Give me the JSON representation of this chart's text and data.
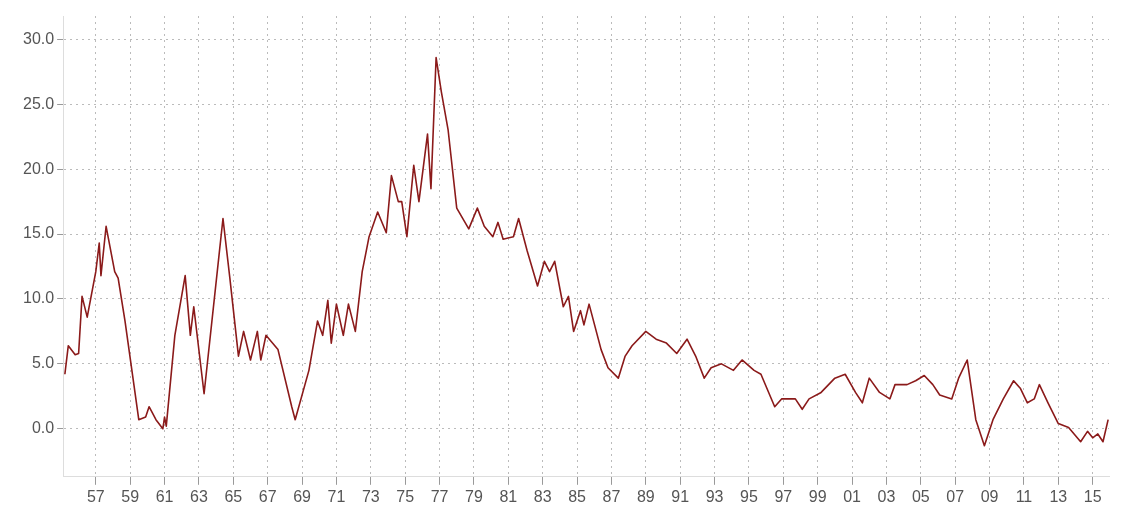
{
  "chart_data": {
    "type": "line",
    "xlim": [
      1955.1,
      2015.95
    ],
    "ylim": [
      -3.7,
      31.8
    ],
    "xticks": [
      {
        "value": 1957,
        "label": "57"
      },
      {
        "value": 1959,
        "label": "59"
      },
      {
        "value": 1961,
        "label": "61"
      },
      {
        "value": 1963,
        "label": "63"
      },
      {
        "value": 1965,
        "label": "65"
      },
      {
        "value": 1967,
        "label": "67"
      },
      {
        "value": 1969,
        "label": "69"
      },
      {
        "value": 1971,
        "label": "71"
      },
      {
        "value": 1973,
        "label": "73"
      },
      {
        "value": 1975,
        "label": "75"
      },
      {
        "value": 1977,
        "label": "77"
      },
      {
        "value": 1979,
        "label": "79"
      },
      {
        "value": 1981,
        "label": "81"
      },
      {
        "value": 1983,
        "label": "83"
      },
      {
        "value": 1985,
        "label": "85"
      },
      {
        "value": 1987,
        "label": "87"
      },
      {
        "value": 1989,
        "label": "89"
      },
      {
        "value": 1991,
        "label": "91"
      },
      {
        "value": 1993,
        "label": "93"
      },
      {
        "value": 1995,
        "label": "95"
      },
      {
        "value": 1997,
        "label": "97"
      },
      {
        "value": 1999,
        "label": "99"
      },
      {
        "value": 2001,
        "label": "01"
      },
      {
        "value": 2003,
        "label": "03"
      },
      {
        "value": 2005,
        "label": "05"
      },
      {
        "value": 2007,
        "label": "07"
      },
      {
        "value": 2009,
        "label": "09"
      },
      {
        "value": 2011,
        "label": "11"
      },
      {
        "value": 2013,
        "label": "13"
      },
      {
        "value": 2015,
        "label": "15"
      }
    ],
    "yticks": [
      {
        "value": 0,
        "label": "0.0"
      },
      {
        "value": 5,
        "label": "5.0"
      },
      {
        "value": 10,
        "label": "10.0"
      },
      {
        "value": 15,
        "label": "15.0"
      },
      {
        "value": 20,
        "label": "20.0"
      },
      {
        "value": 25,
        "label": "25.0"
      },
      {
        "value": 30,
        "label": "30.0"
      }
    ],
    "grid": true,
    "legend": false,
    "marker": "none",
    "line_style": "solid",
    "series": [
      {
        "color": "#8b1a1a",
        "x": [
          1955.2,
          1955.4,
          1955.8,
          1956.0,
          1956.2,
          1956.5,
          1957.0,
          1957.2,
          1957.3,
          1957.6,
          1958.1,
          1958.3,
          1958.7,
          1959.5,
          1959.9,
          1960.1,
          1960.5,
          1960.9,
          1961.0,
          1961.1,
          1961.6,
          1962.2,
          1962.5,
          1962.7,
          1963.3,
          1964.4,
          1964.8,
          1965.3,
          1965.6,
          1966.0,
          1966.4,
          1966.6,
          1966.9,
          1967.6,
          1968.4,
          1968.6,
          1969.4,
          1969.9,
          1970.2,
          1970.5,
          1970.7,
          1971.0,
          1971.4,
          1971.7,
          1972.1,
          1972.5,
          1972.9,
          1973.4,
          1973.9,
          1974.2,
          1974.6,
          1974.8,
          1975.1,
          1975.5,
          1975.8,
          1976.3,
          1976.5,
          1976.8,
          1977.1,
          1977.5,
          1978.0,
          1978.7,
          1979.2,
          1979.6,
          1980.1,
          1980.4,
          1980.7,
          1981.3,
          1981.6,
          1982.1,
          1982.7,
          1983.1,
          1983.4,
          1983.7,
          1984.2,
          1984.5,
          1984.8,
          1985.2,
          1985.4,
          1985.7,
          1986.4,
          1986.8,
          1987.4,
          1987.8,
          1988.2,
          1989.0,
          1989.6,
          1990.2,
          1990.8,
          1991.4,
          1991.9,
          1992.4,
          1992.8,
          1993.4,
          1994.1,
          1994.6,
          1995.3,
          1995.7,
          1996.5,
          1996.9,
          1997.7,
          1998.1,
          1998.5,
          1999.2,
          2000.0,
          2000.6,
          2001.2,
          2001.6,
          2002.0,
          2002.6,
          2003.2,
          2003.5,
          2004.2,
          2004.7,
          2005.2,
          2005.7,
          2006.1,
          2006.8,
          2007.2,
          2007.7,
          2008.2,
          2008.7,
          2009.2,
          2009.8,
          2010.4,
          2010.8,
          2011.2,
          2011.6,
          2011.9,
          2012.4,
          2013.0,
          2013.6,
          2014.3,
          2014.7,
          2015.0,
          2015.3,
          2015.6,
          2015.9
        ],
        "values": [
          4.2,
          6.4,
          5.7,
          5.8,
          10.2,
          8.6,
          12.1,
          14.3,
          11.8,
          15.6,
          12.1,
          11.6,
          8.3,
          0.7,
          0.9,
          1.7,
          0.7,
          0.0,
          0.9,
          0.2,
          7.2,
          11.8,
          7.2,
          9.4,
          2.7,
          16.2,
          11.6,
          5.6,
          7.5,
          5.3,
          7.5,
          5.3,
          7.2,
          6.1,
          1.7,
          0.7,
          4.5,
          8.3,
          7.2,
          9.9,
          6.6,
          9.6,
          7.2,
          9.6,
          7.5,
          12.1,
          14.8,
          16.7,
          15.1,
          19.5,
          17.5,
          17.5,
          14.8,
          20.3,
          17.5,
          22.7,
          18.5,
          28.6,
          26.0,
          23.0,
          17.0,
          15.4,
          17.0,
          15.6,
          14.8,
          15.9,
          14.6,
          14.8,
          16.2,
          13.7,
          11.0,
          12.9,
          12.1,
          12.9,
          9.4,
          10.2,
          7.5,
          9.1,
          8.0,
          9.6,
          6.1,
          4.7,
          3.9,
          5.6,
          6.4,
          7.5,
          6.9,
          6.6,
          5.8,
          6.9,
          5.6,
          3.9,
          4.7,
          5.0,
          4.5,
          5.3,
          4.5,
          4.2,
          1.7,
          2.3,
          2.3,
          1.5,
          2.3,
          2.8,
          3.9,
          4.2,
          2.8,
          2.0,
          3.9,
          2.8,
          2.3,
          3.4,
          3.4,
          3.7,
          4.1,
          3.4,
          2.6,
          2.3,
          3.9,
          5.3,
          0.7,
          -1.3,
          0.7,
          2.3,
          3.7,
          3.1,
          2.0,
          2.3,
          3.4,
          2.0,
          0.4,
          0.1,
          -1.0,
          -0.2,
          -0.7,
          -0.4,
          -1.0,
          0.7
        ]
      }
    ]
  }
}
